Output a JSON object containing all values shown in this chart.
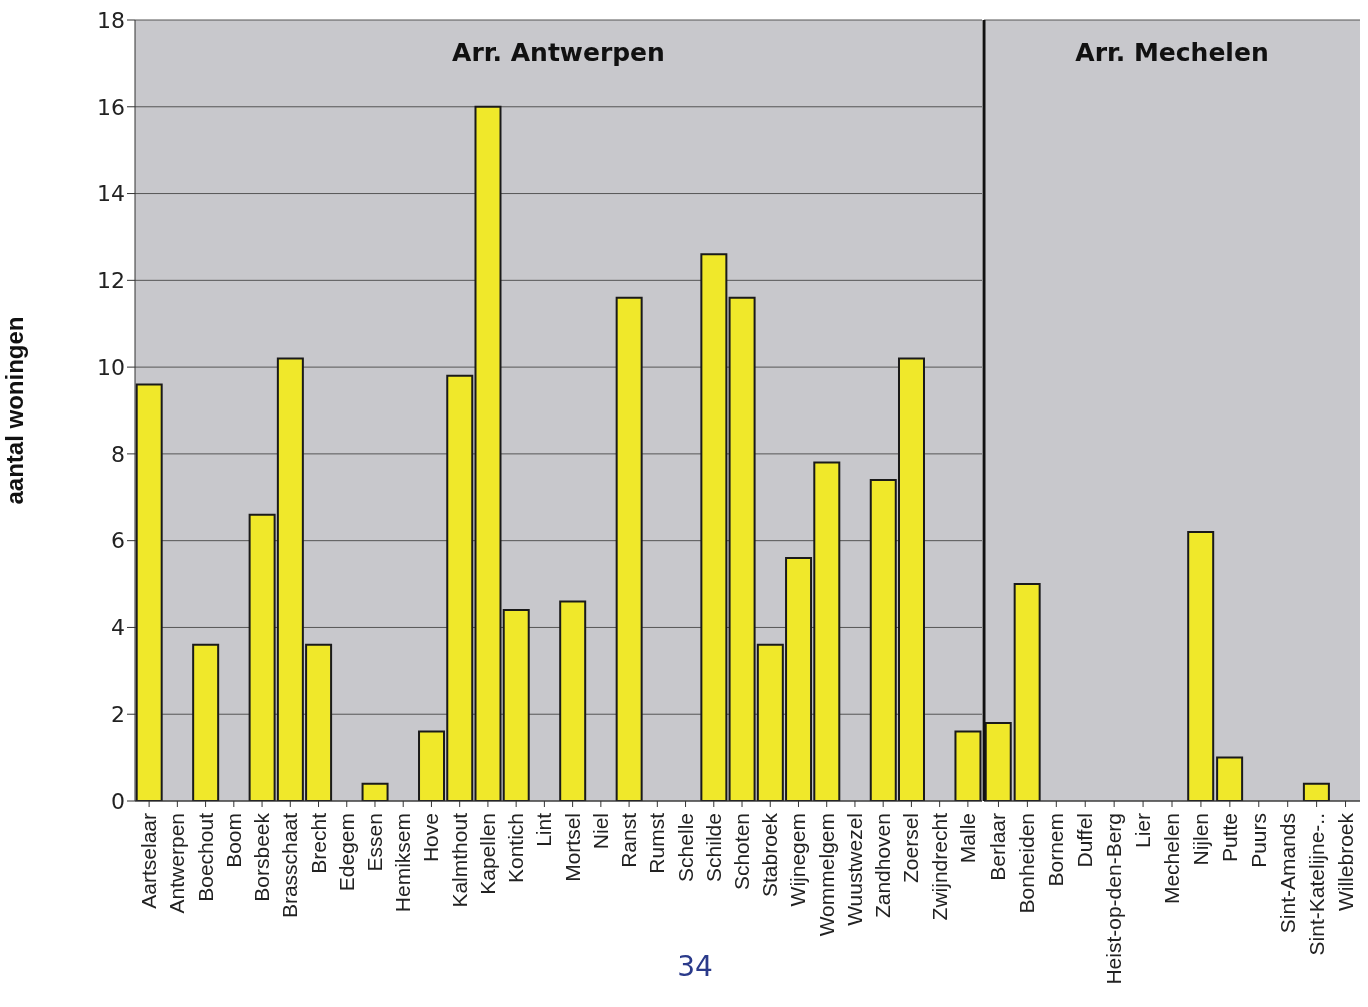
{
  "chart_data": [
    {
      "type": "bar",
      "title": "Arr. Antwerpen",
      "ylabel": "aantal woningen",
      "categories": [
        "Aartselaar",
        "Antwerpen",
        "Boechout",
        "Boom",
        "Borsbeek",
        "Brasschaat",
        "Brecht",
        "Edegem",
        "Essen",
        "Hemiksem",
        "Hove",
        "Kalmthout",
        "Kapellen",
        "Kontich",
        "Lint",
        "Mortsel",
        "Niel",
        "Ranst",
        "Rumst",
        "Schelle",
        "Schilde",
        "Schoten",
        "Stabroek",
        "Wijnegem",
        "Wommelgem",
        "Wuustwezel",
        "Zandhoven",
        "Zoersel",
        "Zwijndrecht",
        "Malle"
      ],
      "values": [
        9.6,
        0,
        3.6,
        0,
        6.6,
        10.2,
        3.6,
        0,
        0.4,
        0,
        1.6,
        9.8,
        16,
        4.4,
        0,
        4.6,
        0,
        11.6,
        0,
        0,
        12.6,
        11.6,
        3.6,
        5.6,
        7.8,
        0,
        7.4,
        10.2,
        0,
        1.6
      ],
      "color": "#f0e82a",
      "ylim": [
        0,
        18
      ],
      "yticks": [
        0,
        2,
        4,
        6,
        8,
        10,
        12,
        14,
        16,
        18
      ],
      "grid": "y",
      "legend": false,
      "annotations": [
        "34"
      ]
    },
    {
      "type": "bar",
      "title": "Arr. Mechelen",
      "categories": [
        "Berlaar",
        "Bonheiden",
        "Bornem",
        "Duffel",
        "Heist-op-den-Berg",
        "Lier",
        "Mechelen",
        "Nijlen",
        "Putte",
        "Puurs",
        "Sint-Amands",
        "Sint-Katelijne-..",
        "Willebroek"
      ],
      "values": [
        1.8,
        5.0,
        0,
        0,
        0,
        0,
        0,
        6.2,
        1.0,
        0,
        0,
        0.4,
        0
      ],
      "color": "#f0e82a",
      "ylim": [
        0,
        18
      ],
      "yticks": [
        0,
        2,
        4,
        6,
        8,
        10,
        12,
        14,
        16,
        18
      ],
      "grid": "y",
      "legend": false,
      "tick_labels": "x"
    }
  ]
}
